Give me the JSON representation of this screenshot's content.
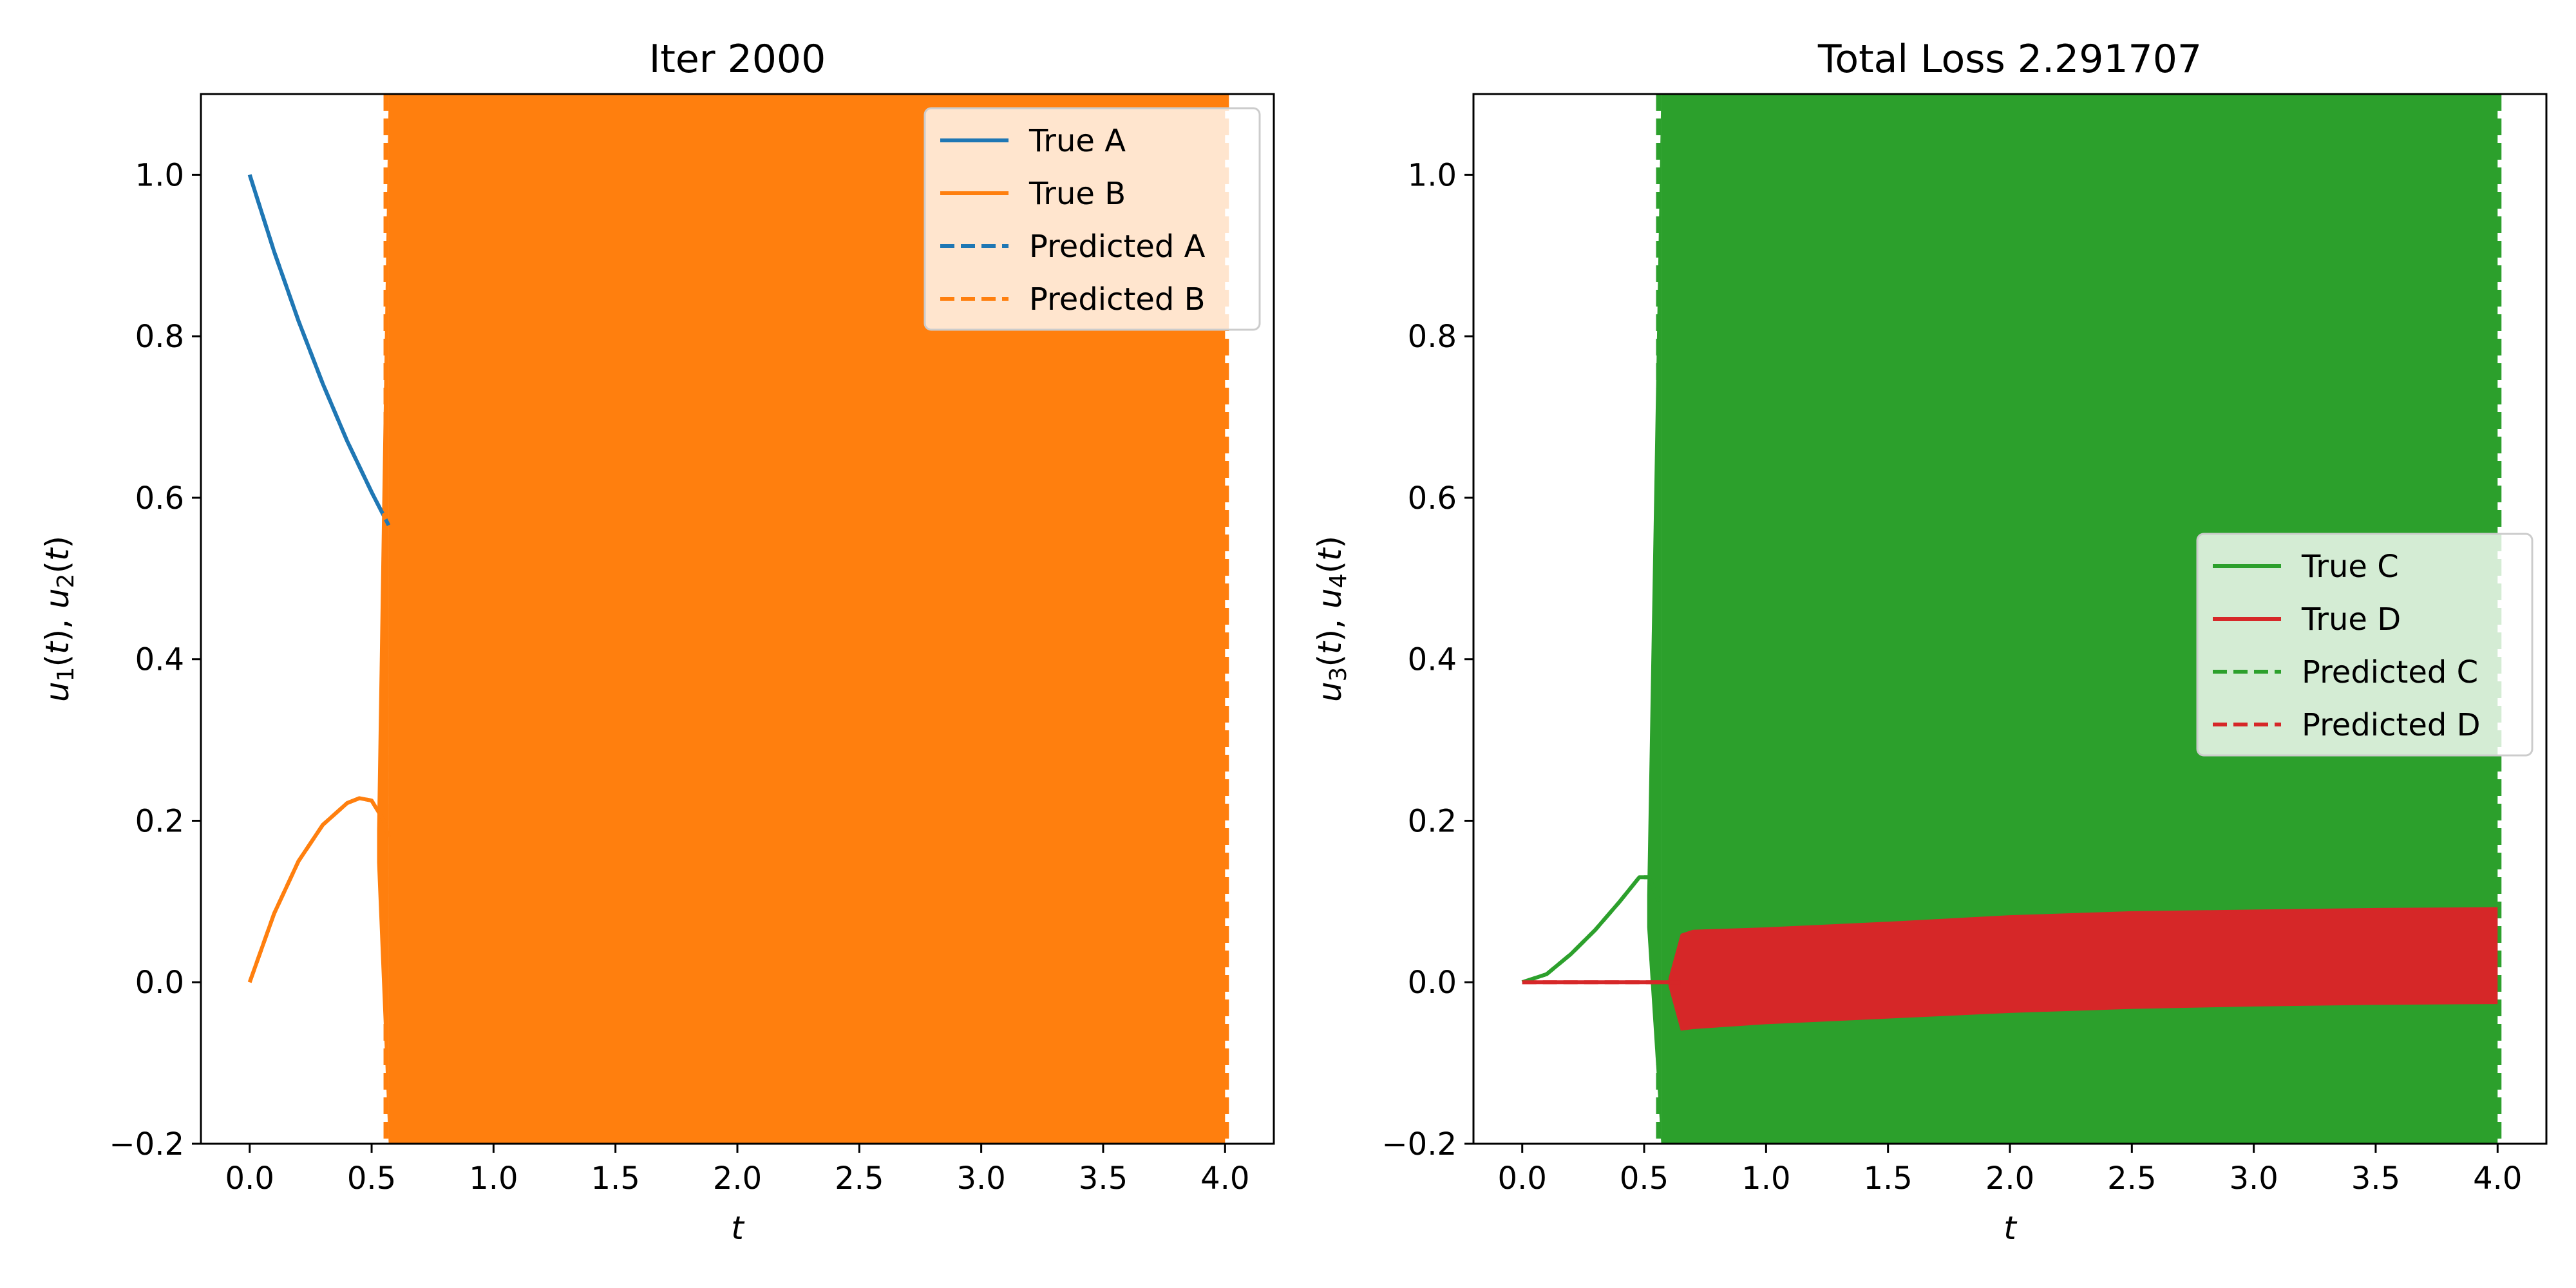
{
  "chart_data": [
    {
      "type": "line",
      "title": "Iter 2000",
      "xlabel": "t",
      "ylabel": "u_1(t), u_2(t)",
      "xlim": [
        -0.2,
        4.2
      ],
      "ylim": [
        -0.2,
        1.1
      ],
      "xticks": [
        "0.0",
        "0.5",
        "1.0",
        "1.5",
        "2.0",
        "2.5",
        "3.0",
        "3.5",
        "4.0"
      ],
      "yticks": [
        "−0.2",
        "0.0",
        "0.2",
        "0.4",
        "0.6",
        "0.8",
        "1.0"
      ],
      "grid": false,
      "legend": {
        "placement": "upper right",
        "entries": [
          "True A",
          "True B",
          "Predicted A",
          "Predicted B"
        ]
      },
      "series": [
        {
          "name": "True A",
          "style": "solid",
          "color": "#1f77b4",
          "x": [
            0.0,
            0.1,
            0.2,
            0.3,
            0.4,
            0.5,
            0.57
          ],
          "y": [
            1.0,
            0.905,
            0.819,
            0.741,
            0.67,
            0.607,
            0.566
          ]
        },
        {
          "name": "True B",
          "style": "solid",
          "color": "#ff7f0e",
          "x": [
            0.0,
            0.1,
            0.2,
            0.3,
            0.4,
            0.45,
            0.5,
            0.55,
            0.57
          ],
          "y": [
            0.0,
            0.085,
            0.15,
            0.195,
            0.222,
            0.228,
            0.225,
            0.2,
            0.18
          ],
          "oscillating_band": {
            "x_from": 0.57,
            "x_to": 4.0,
            "y_from": -0.2,
            "y_to": 1.1
          }
        },
        {
          "name": "Predicted A",
          "style": "dashed",
          "color": "#1f77b4",
          "x": [
            0.0,
            0.1,
            0.2,
            0.3,
            0.4,
            0.5,
            0.57
          ],
          "y": [
            1.0,
            0.905,
            0.819,
            0.741,
            0.67,
            0.607,
            0.566
          ]
        },
        {
          "name": "Predicted B",
          "style": "dashed",
          "color": "#ff7f0e",
          "x": [
            0.0,
            0.1,
            0.2,
            0.3,
            0.4,
            0.45,
            0.5,
            0.55,
            0.57
          ],
          "y": [
            0.0,
            0.085,
            0.15,
            0.195,
            0.222,
            0.228,
            0.225,
            0.2,
            0.18
          ]
        }
      ]
    },
    {
      "type": "line",
      "title": "Total Loss 2.291707",
      "xlabel": "t",
      "ylabel": "u_3(t), u_4(t)",
      "xlim": [
        -0.2,
        4.2
      ],
      "ylim": [
        -0.2,
        1.1
      ],
      "xticks": [
        "0.0",
        "0.5",
        "1.0",
        "1.5",
        "2.0",
        "2.5",
        "3.0",
        "3.5",
        "4.0"
      ],
      "yticks": [
        "−0.2",
        "0.0",
        "0.2",
        "0.4",
        "0.6",
        "0.8",
        "1.0"
      ],
      "grid": false,
      "legend": {
        "placement": "center right",
        "entries": [
          "True C",
          "True D",
          "Predicted C",
          "Predicted D"
        ]
      },
      "series": [
        {
          "name": "True C",
          "style": "solid",
          "color": "#2ca02c",
          "x": [
            0.0,
            0.1,
            0.2,
            0.3,
            0.4,
            0.48,
            0.52,
            0.56
          ],
          "y": [
            0.0,
            0.01,
            0.035,
            0.065,
            0.1,
            0.13,
            0.13,
            0.1
          ],
          "oscillating_band": {
            "x_from": 0.57,
            "x_to": 4.0,
            "y_from": -0.2,
            "y_to": 1.1
          }
        },
        {
          "name": "True D",
          "style": "solid",
          "color": "#d62728",
          "x": [
            0.0,
            0.5,
            0.6,
            0.65
          ],
          "y": [
            0.0,
            0.0,
            0.0,
            0.0
          ],
          "oscillating_band": {
            "x": [
              0.6,
              0.65,
              0.7,
              1.0,
              1.5,
              2.0,
              2.5,
              3.0,
              3.5,
              4.0
            ],
            "upper": [
              0.005,
              0.06,
              0.065,
              0.068,
              0.075,
              0.083,
              0.088,
              0.09,
              0.092,
              0.093
            ],
            "lower": [
              -0.005,
              -0.06,
              -0.058,
              -0.052,
              -0.045,
              -0.038,
              -0.033,
              -0.03,
              -0.028,
              -0.027
            ]
          }
        },
        {
          "name": "Predicted C",
          "style": "dashed",
          "color": "#2ca02c",
          "x": [
            0.0,
            0.1,
            0.2,
            0.3,
            0.4,
            0.48,
            0.52,
            0.56
          ],
          "y": [
            0.0,
            0.01,
            0.035,
            0.065,
            0.1,
            0.13,
            0.13,
            0.1
          ]
        },
        {
          "name": "Predicted D",
          "style": "dashed",
          "color": "#d62728",
          "x": [
            0.0,
            0.5,
            0.6
          ],
          "y": [
            0.0,
            0.0,
            0.0
          ]
        }
      ]
    }
  ]
}
